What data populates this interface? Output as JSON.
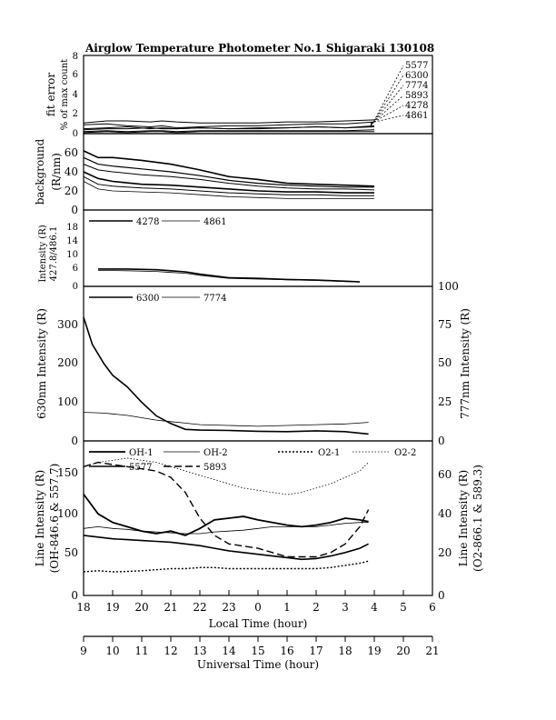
{
  "title": "Airglow Temperature Photometer No.1   Shigaraki   130108",
  "x_axes": {
    "local_label": "Local Time (hour)",
    "local_ticks": [
      "18",
      "19",
      "20",
      "21",
      "22",
      "23",
      "0",
      "1",
      "2",
      "3",
      "4",
      "5",
      "6"
    ],
    "ut_label": "Universal Time (hour)",
    "ut_ticks": [
      "9",
      "10",
      "11",
      "12",
      "13",
      "14",
      "15",
      "16",
      "17",
      "18",
      "19",
      "20",
      "21"
    ]
  },
  "panels": {
    "fit_error": {
      "ylabel_line1": "fit error",
      "ylabel_line2": "% of max count",
      "ticks": [
        "0",
        "2",
        "4",
        "6",
        "8"
      ],
      "channel_labels": [
        "5577",
        "6300",
        "7774",
        "5893",
        "4278",
        "4861"
      ]
    },
    "background": {
      "ylabel_line1": "background",
      "ylabel_line2": "(R/nm)",
      "ticks": [
        "0",
        "20",
        "40",
        "60"
      ]
    },
    "blue": {
      "ylabel_line1": "Intensity (R)",
      "ylabel_line2": "427.8/486.1",
      "ticks": [
        "0",
        "6",
        "10",
        "14",
        "18"
      ],
      "legend": [
        "4278",
        "4861"
      ]
    },
    "red": {
      "ylabel_left": "630nm Intensity (R)",
      "ylabel_right": "777nm Intensity (R)",
      "ticks_left": [
        "0",
        "100",
        "200",
        "300"
      ],
      "ticks_right": [
        "0",
        "25",
        "50",
        "75",
        "100"
      ],
      "legend": [
        "6300",
        "7774"
      ]
    },
    "lines": {
      "ylabel_left_1": "Line Intensity (R)",
      "ylabel_left_2": "(OH-846.6 & 557.7)",
      "ylabel_right_1": "Line Intensity (R)",
      "ylabel_right_2": "(O2-866.1 & 589.3)",
      "ticks_left": [
        "0",
        "50",
        "100",
        "150"
      ],
      "ticks_right": [
        "0",
        "20",
        "40",
        "60"
      ],
      "legend": [
        "OH-1",
        "OH-2",
        "O2-1",
        "O2-2",
        "5577",
        "5893"
      ]
    }
  },
  "chart_data": [
    {
      "type": "line",
      "title": "fit error",
      "xlim": [
        18,
        30
      ],
      "ylim": [
        0,
        8
      ],
      "x": [
        18.0,
        18.8,
        19.5,
        20.3,
        20.7,
        21.2,
        22.0,
        23.0,
        24.0,
        25.0,
        26.0,
        27.0,
        28.0
      ],
      "series": [
        {
          "name": "5577",
          "values": [
            0.5,
            0.6,
            0.7,
            0.5,
            0.6,
            0.5,
            0.6,
            0.5,
            0.6,
            0.6,
            0.7,
            0.6,
            0.8
          ]
        },
        {
          "name": "6300",
          "values": [
            0.9,
            1.0,
            0.8,
            0.7,
            0.8,
            0.6,
            0.7,
            0.8,
            0.8,
            0.9,
            1.0,
            1.0,
            1.2
          ]
        },
        {
          "name": "7774",
          "values": [
            1.1,
            1.3,
            1.3,
            1.2,
            1.3,
            1.2,
            1.1,
            1.1,
            1.1,
            1.2,
            1.2,
            1.3,
            1.4
          ]
        },
        {
          "name": "5893",
          "values": [
            0.4,
            0.5,
            0.5,
            0.6,
            0.5,
            0.5,
            0.6,
            0.5,
            0.5,
            0.6,
            0.7,
            0.6,
            0.7
          ]
        },
        {
          "name": "4278",
          "values": [
            0.2,
            0.3,
            0.2,
            0.3,
            0.3,
            0.2,
            0.3,
            0.3,
            0.3,
            0.3,
            0.3,
            0.3,
            0.4
          ]
        },
        {
          "name": "4861",
          "values": [
            0.1,
            0.2,
            0.1,
            0.2,
            0.2,
            0.1,
            0.2,
            0.2,
            0.2,
            0.2,
            0.2,
            0.2,
            0.2
          ]
        }
      ]
    },
    {
      "type": "line",
      "title": "background",
      "xlim": [
        18,
        30
      ],
      "ylim": [
        0,
        80
      ],
      "x": [
        18.0,
        18.5,
        19.0,
        20.0,
        21.0,
        22.0,
        23.0,
        24.0,
        25.0,
        26.0,
        27.0,
        28.0
      ],
      "series": [
        {
          "values": [
            62,
            55,
            55,
            52,
            48,
            42,
            35,
            32,
            28,
            27,
            26,
            25
          ]
        },
        {
          "values": [
            55,
            48,
            46,
            43,
            40,
            36,
            31,
            28,
            26,
            25,
            24,
            24
          ]
        },
        {
          "values": [
            48,
            42,
            40,
            37,
            35,
            32,
            28,
            25,
            23,
            22,
            22,
            21
          ]
        },
        {
          "values": [
            40,
            33,
            30,
            27,
            26,
            24,
            22,
            20,
            19,
            19,
            18,
            18
          ]
        },
        {
          "values": [
            35,
            27,
            25,
            23,
            22,
            20,
            18,
            17,
            16,
            16,
            15,
            15
          ]
        },
        {
          "values": [
            30,
            22,
            20,
            19,
            18,
            16,
            14,
            13,
            12,
            12,
            12,
            12
          ]
        }
      ]
    },
    {
      "type": "line",
      "title": "427.8/486.1",
      "xlim": [
        18,
        30
      ],
      "ylim": [
        0,
        22
      ],
      "x": [
        18.5,
        19.5,
        20.5,
        21.0,
        21.5,
        22.0,
        23.0,
        24.0,
        25.0,
        26.0,
        27.0,
        27.5
      ],
      "series": [
        {
          "name": "4278",
          "values": [
            5.0,
            5.0,
            4.8,
            4.5,
            4.2,
            3.5,
            2.5,
            2.3,
            2.0,
            1.8,
            1.5,
            1.3
          ]
        },
        {
          "name": "4861",
          "values": [
            4.6,
            4.5,
            4.3,
            4.0,
            3.8,
            3.2,
            2.3,
            2.1,
            1.9,
            1.7,
            1.4,
            1.2
          ]
        }
      ]
    },
    {
      "type": "line",
      "title": "630nm / 777nm",
      "xlim": [
        18,
        30
      ],
      "ylim": [
        0,
        400
      ],
      "ylim_right": [
        0,
        100
      ],
      "x": [
        18.0,
        18.3,
        18.7,
        19.0,
        19.5,
        20.0,
        20.5,
        21.0,
        21.5,
        22.0,
        23.0,
        24.0,
        25.0,
        26.0,
        27.0,
        27.8
      ],
      "series": [
        {
          "name": "6300",
          "values": [
            320,
            250,
            200,
            170,
            140,
            100,
            65,
            45,
            30,
            28,
            27,
            25,
            24,
            26,
            24,
            18
          ]
        },
        {
          "name": "7774",
          "values": [
            18.5,
            18.3,
            18.0,
            17.5,
            16.5,
            15.0,
            13.5,
            12.5,
            11.5,
            10.5,
            10.0,
            9.5,
            10.0,
            10.5,
            11.0,
            12.0
          ]
        }
      ]
    },
    {
      "type": "line",
      "title": "Line Intensity",
      "xlim": [
        18,
        30
      ],
      "ylim": [
        0,
        180
      ],
      "ylim_right": [
        0,
        72
      ],
      "x": [
        18.0,
        18.5,
        19.0,
        19.5,
        20.0,
        20.5,
        21.0,
        21.5,
        22.0,
        22.5,
        23.0,
        23.5,
        24.0,
        24.5,
        25.0,
        25.5,
        26.0,
        26.5,
        27.0,
        27.5,
        27.8
      ],
      "series": [
        {
          "name": "OH-1",
          "values": [
            118,
            95,
            85,
            80,
            75,
            72,
            75,
            70,
            78,
            88,
            90,
            92,
            88,
            85,
            82,
            80,
            82,
            85,
            90,
            88,
            86
          ]
        },
        {
          "name": "OH-2",
          "values": [
            78,
            80,
            78,
            77,
            75,
            74,
            73,
            72,
            72,
            74,
            75,
            76,
            78,
            80,
            80,
            80,
            80,
            82,
            84,
            85,
            85
          ]
        },
        {
          "name": "5577",
          "values": [
            70,
            68,
            66,
            65,
            64,
            63,
            62,
            60,
            58,
            55,
            52,
            50,
            48,
            46,
            44,
            42,
            43,
            46,
            50,
            55,
            60
          ]
        },
        {
          "name": "O2-1",
          "values": [
            11,
            11.5,
            11,
            11.2,
            11.5,
            12,
            12.5,
            12.5,
            13,
            13,
            12.5,
            12.5,
            12.5,
            12.5,
            12.5,
            12.5,
            12.5,
            13,
            14,
            15,
            16
          ]
        },
        {
          "name": "O2-2",
          "values": [
            60,
            62,
            63,
            64,
            63,
            62,
            60,
            58,
            56,
            54,
            52,
            50,
            49,
            48,
            47,
            48,
            50,
            52,
            55,
            58,
            62
          ]
        },
        {
          "name": "5893",
          "values": [
            60,
            62,
            61,
            60,
            59,
            58,
            55,
            48,
            36,
            28,
            24,
            23,
            22,
            20,
            18,
            18,
            18,
            20,
            24,
            32,
            40
          ]
        }
      ]
    }
  ]
}
